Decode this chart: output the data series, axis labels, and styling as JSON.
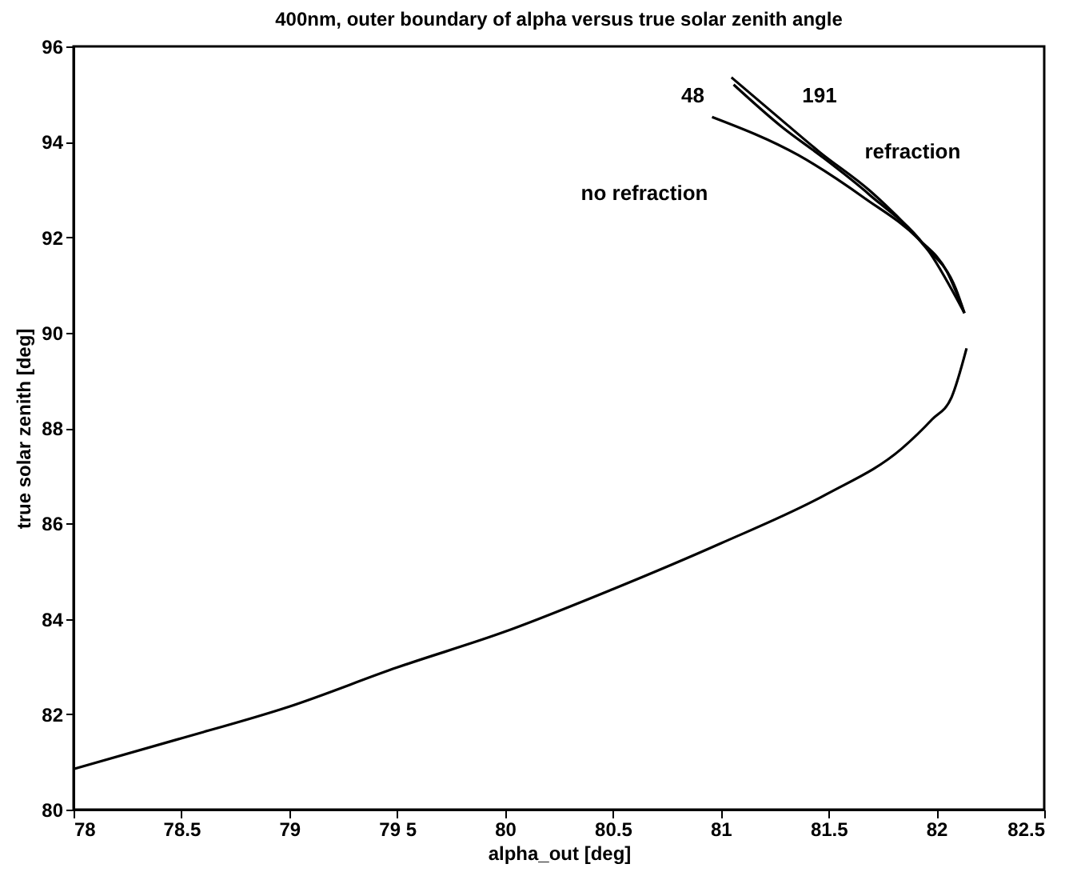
{
  "chart_data": {
    "type": "line",
    "title": "400nm, outer boundary of alpha versus true solar zenith angle",
    "xlabel": "alpha_out [deg]",
    "ylabel": "true solar zenith [deg]",
    "xlim": [
      78,
      82.5
    ],
    "ylim": [
      80,
      96
    ],
    "xticks": [
      78,
      78.5,
      79,
      {
        "value": 79.5,
        "label": "79 5"
      },
      80,
      80.5,
      81,
      81.5,
      82,
      82.5
    ],
    "yticks": [
      80,
      82,
      84,
      86,
      88,
      90,
      92,
      94,
      96
    ],
    "grid": false,
    "marker": "none",
    "line_style": "solid",
    "series": [
      {
        "color": "#000000",
        "x": [
          78.0,
          78.48,
          79.0,
          79.5,
          80.0,
          80.5,
          81.0,
          81.49,
          81.84,
          81.98,
          82.07,
          82.14
        ],
        "values": [
          80.85,
          81.47,
          82.16,
          82.98,
          83.73,
          84.62,
          85.58,
          86.61,
          87.57,
          88.18,
          88.64,
          89.67
        ]
      },
      {
        "color": "#000000",
        "x": [
          82.13,
          82.05,
          81.92,
          81.67,
          81.36,
          80.96
        ],
        "values": [
          90.41,
          91.27,
          91.95,
          92.81,
          93.72,
          94.52
        ]
      },
      {
        "color": "#000000",
        "x": [
          82.13,
          82.09,
          81.94,
          81.69,
          81.46,
          81.31,
          81.05
        ],
        "values": [
          90.41,
          90.92,
          91.84,
          92.98,
          93.78,
          94.35,
          95.35
        ]
      },
      {
        "color": "#000000",
        "x": [
          82.13,
          81.97,
          81.69,
          81.46,
          81.29,
          81.06
        ],
        "values": [
          90.41,
          91.67,
          92.89,
          93.72,
          94.29,
          95.2
        ]
      }
    ],
    "annotations": [
      {
        "text": "48",
        "x": 80.96,
        "y": 94.52
      },
      {
        "text": "191",
        "x": 81.31,
        "y": 94.35
      },
      {
        "text": "refraction",
        "x": 81.46,
        "y": 93.78
      },
      "no refraction"
    ]
  }
}
